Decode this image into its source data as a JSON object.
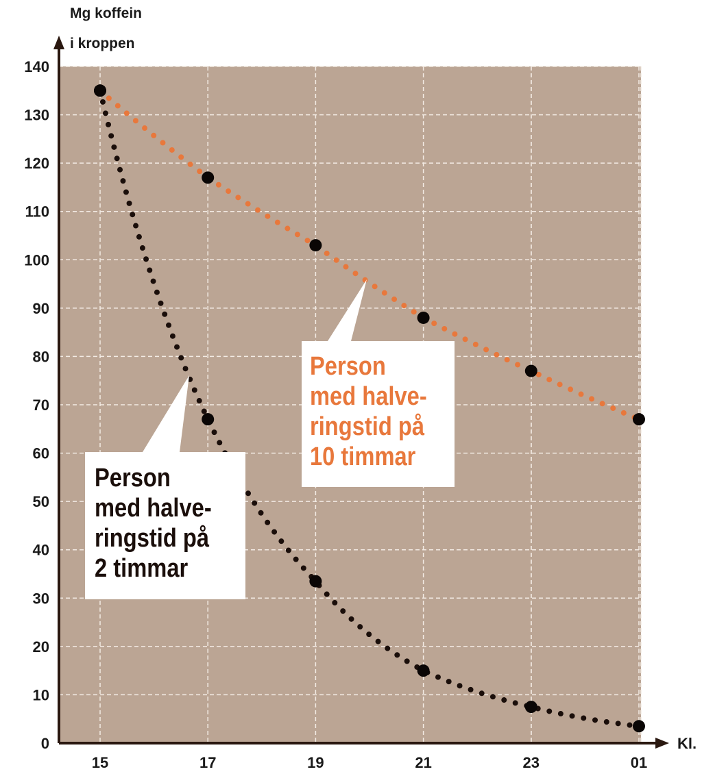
{
  "chart_data": {
    "type": "scatter",
    "ylabel_lines": [
      "Mg koffein",
      "i kroppen"
    ],
    "xlabel": "Kl.",
    "categories": [
      "15",
      "17",
      "19",
      "21",
      "23",
      "01"
    ],
    "y_ticks": [
      "0",
      "10",
      "20",
      "30",
      "40",
      "50",
      "60",
      "70",
      "80",
      "90",
      "100",
      "110",
      "120",
      "130",
      "140"
    ],
    "ylim": [
      0,
      140
    ],
    "grid": true,
    "series": [
      {
        "name": "Person med halveringstid på 10 timmar",
        "lines": [
          "Person",
          "med halve-",
          "ringstid på",
          "10 timmar"
        ],
        "color": "#e8783c",
        "values": [
          135,
          117,
          103,
          88,
          77,
          67
        ]
      },
      {
        "name": "Person med halveringstid på 2 timmar",
        "lines": [
          "Person",
          "med halve-",
          "ringstid på",
          "2 timmar"
        ],
        "color": "#1a0e0a",
        "values": [
          135,
          67,
          33.5,
          15,
          7.5,
          3.5
        ]
      }
    ],
    "colors": {
      "plot_bg": "#bba594",
      "grid": "#f3ebe4",
      "axis": "#2a1810",
      "marker": "#0a0605",
      "callout_bg": "#ffffff"
    }
  }
}
